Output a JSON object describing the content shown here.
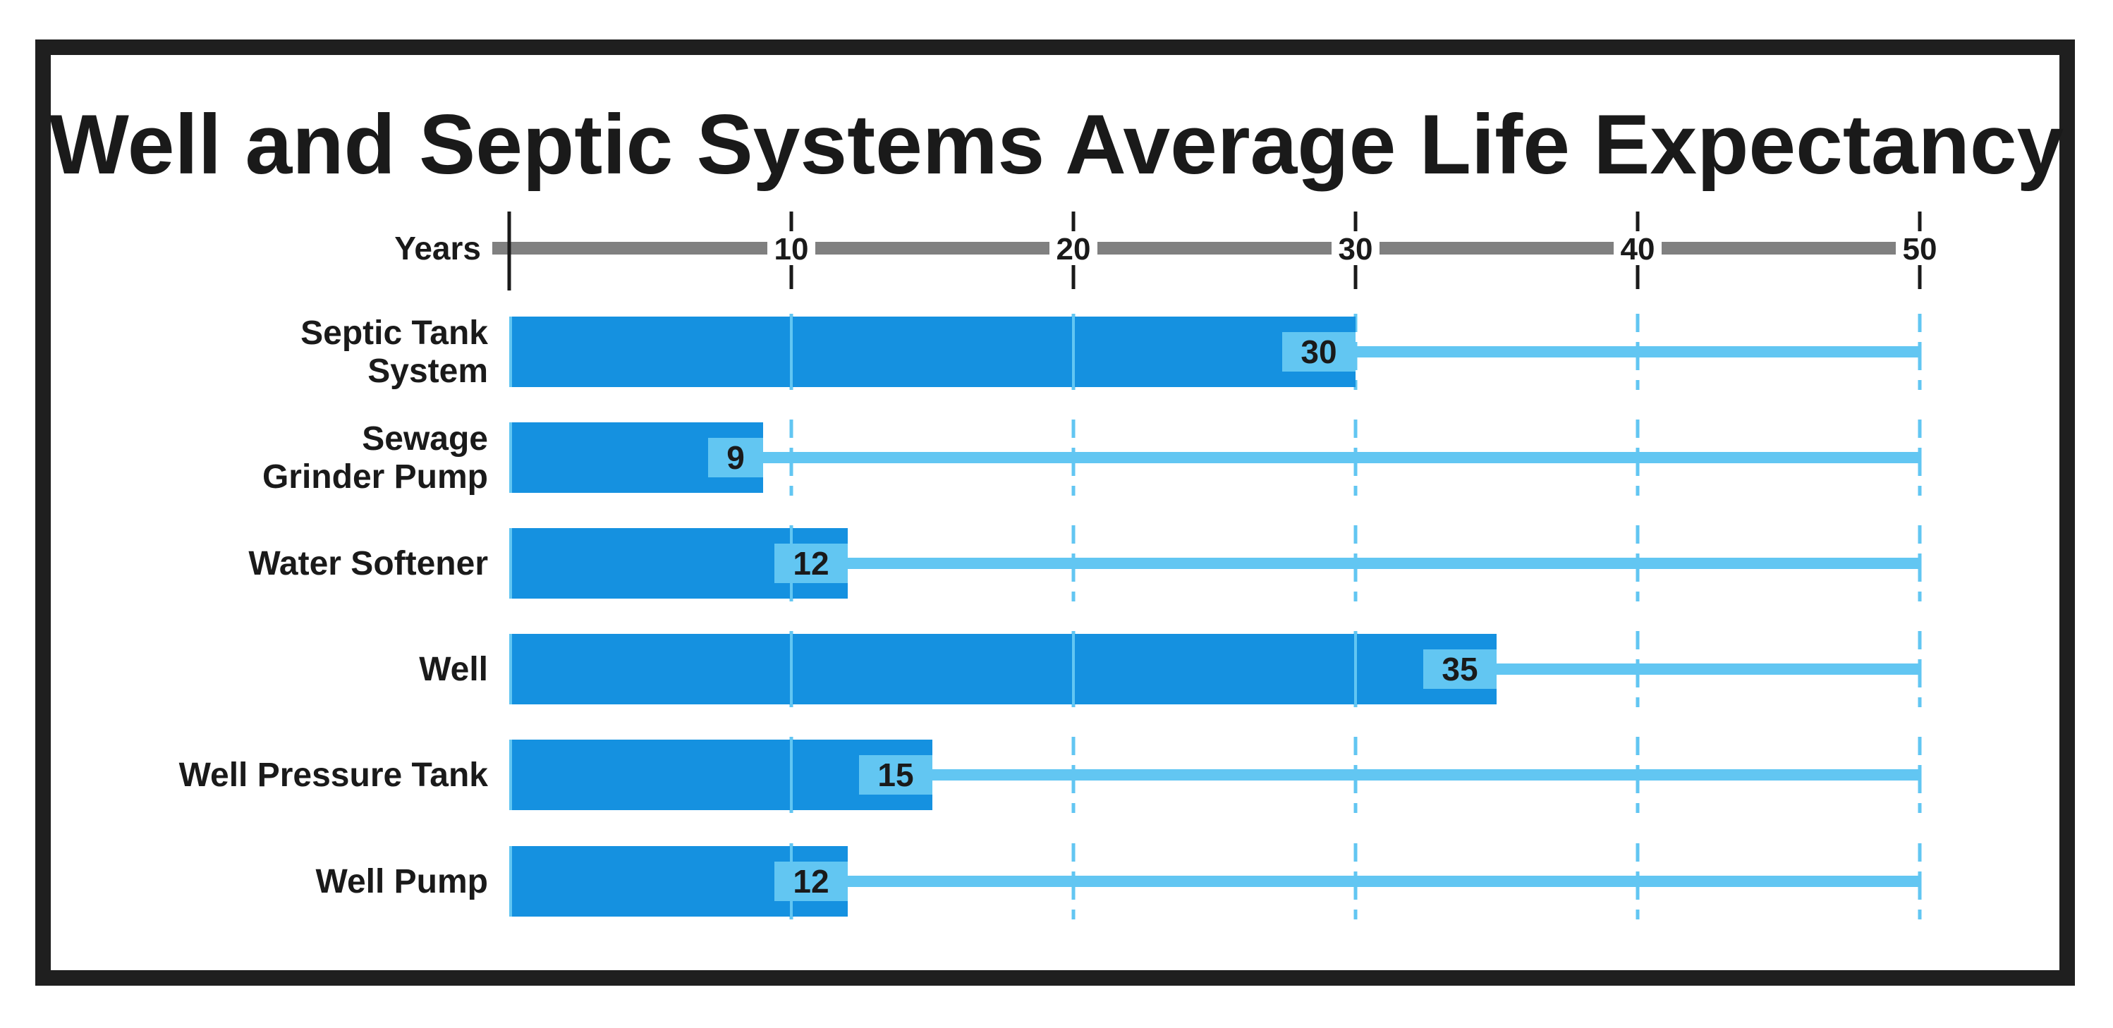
{
  "chart_data": {
    "type": "bar",
    "title": "Well and Septic Systems Average Life Expectancy",
    "xlabel": "Years",
    "ylabel": "",
    "xlim": [
      0,
      50
    ],
    "ticks": [
      10,
      20,
      30,
      40,
      50
    ],
    "orientation": "horizontal",
    "categories": [
      [
        "Septic Tank",
        "System"
      ],
      [
        "Sewage",
        "Grinder Pump"
      ],
      [
        "Water Softener"
      ],
      [
        "Well"
      ],
      [
        "Well Pressure Tank"
      ],
      [
        "Well Pump"
      ]
    ],
    "values": [
      30,
      9,
      12,
      35,
      15,
      12
    ],
    "colors": {
      "bar": "#1591e0",
      "track": "#62c6f2",
      "label_box": "#62c6f2",
      "axis": "#808080",
      "tick": "#1a1a1a"
    }
  }
}
